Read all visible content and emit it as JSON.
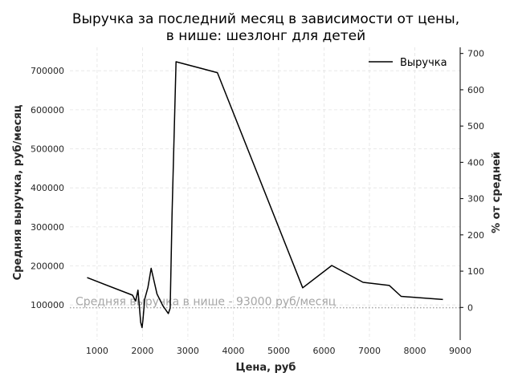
{
  "chart_data": {
    "type": "line",
    "title_line1": "Выручка за последний месяц в зависимости от цены,",
    "title_line2": "в нише: шезлонг для детей",
    "xlabel": "Цена, руб",
    "ylabel": "Средняя выручка, руб/месяц",
    "y2label": "% от средней",
    "xlim": [
      400,
      9000
    ],
    "ylim": [
      10000,
      760000
    ],
    "y2lim": [
      -90,
      717
    ],
    "xticks": [
      1000,
      2000,
      3000,
      4000,
      5000,
      6000,
      7000,
      8000,
      9000
    ],
    "yticks": [
      100000,
      200000,
      300000,
      400000,
      500000,
      600000,
      700000
    ],
    "y2ticks": [
      0,
      100,
      200,
      300,
      400,
      500,
      600,
      700
    ],
    "grid": true,
    "legend_position": "top-right",
    "series": [
      {
        "name": "Выручка",
        "color": "#000000",
        "x": [
          780,
          1780,
          1850,
          1900,
          1960,
          1990,
          2010,
          2050,
          2120,
          2190,
          2320,
          2450,
          2570,
          2610,
          2650,
          2740,
          3650,
          5530,
          6170,
          6860,
          7440,
          7700,
          8620
        ],
        "y": [
          170000,
          125000,
          110000,
          138000,
          55000,
          42000,
          62000,
          115000,
          145000,
          194000,
          128000,
          98000,
          78000,
          92000,
          330000,
          723000,
          695000,
          144000,
          201000,
          158000,
          150000,
          122000,
          114000
        ]
      }
    ],
    "average": {
      "value": 93000,
      "label": "Средняя выручка в нише - 93000 руб/месяц",
      "color": "#a6a6a6"
    }
  }
}
